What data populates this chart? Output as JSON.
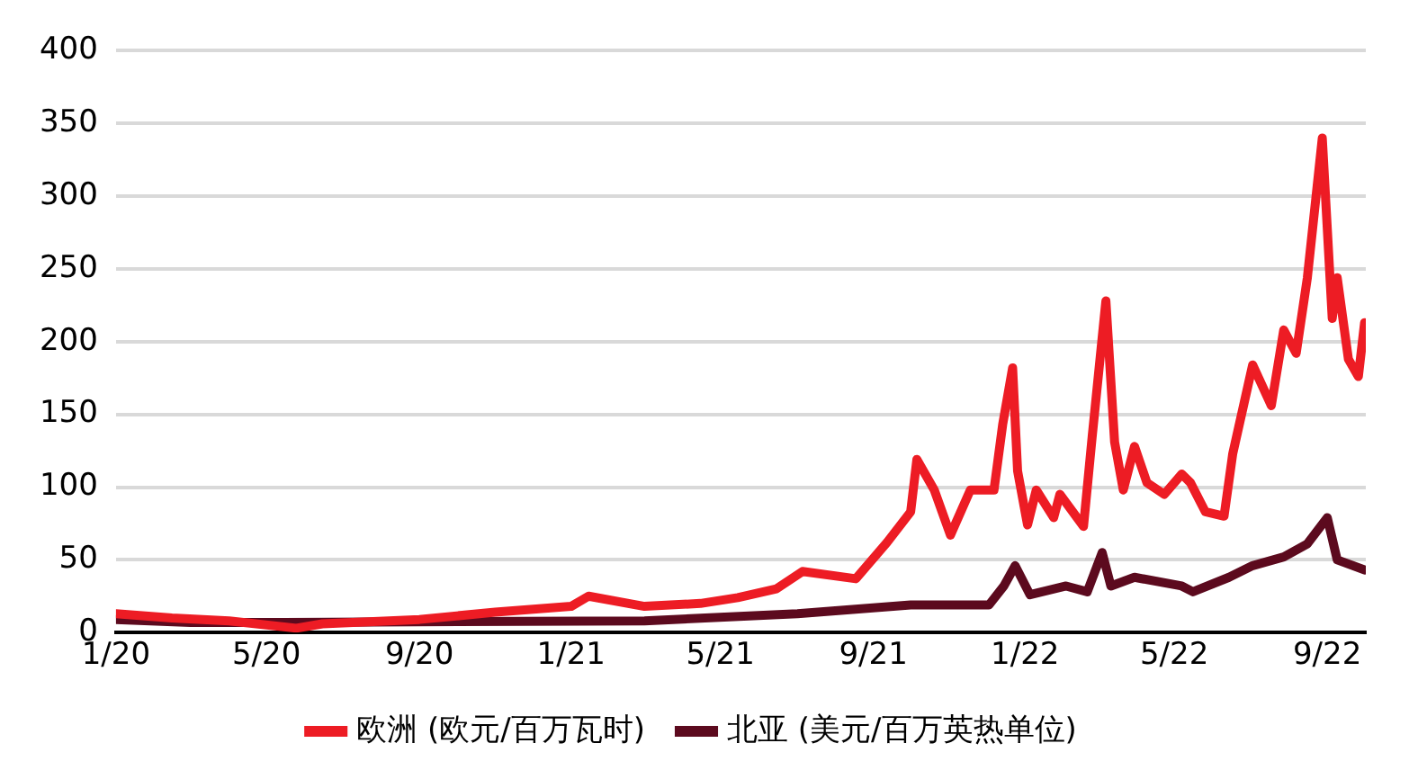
{
  "chart_data": {
    "type": "line",
    "xlim": [
      "2020-01-01",
      "2022-10-02"
    ],
    "xticks": [
      {
        "value": "2020-01-01",
        "label": "1/20"
      },
      {
        "value": "2020-05-01",
        "label": "5/20"
      },
      {
        "value": "2020-09-01",
        "label": "9/20"
      },
      {
        "value": "2021-01-01",
        "label": "1/21"
      },
      {
        "value": "2021-05-01",
        "label": "5/21"
      },
      {
        "value": "2021-09-01",
        "label": "9/21"
      },
      {
        "value": "2022-01-01",
        "label": "1/22"
      },
      {
        "value": "2022-05-01",
        "label": "5/22"
      },
      {
        "value": "2022-09-01",
        "label": "9/22"
      }
    ],
    "ylim": [
      0,
      400
    ],
    "yticks": [
      0,
      50,
      100,
      150,
      200,
      250,
      300,
      350,
      400
    ],
    "grid": "y",
    "legend": "bottom",
    "marker": "none",
    "line_style": "solid",
    "series": [
      {
        "name": "欧洲 (欧元/百万瓦时)",
        "color": "#ed1c24",
        "x": [
          "2020-01-01",
          "2020-02-15",
          "2020-04-01",
          "2020-05-25",
          "2020-06-15",
          "2020-09-01",
          "2020-11-01",
          "2021-01-01",
          "2021-01-15",
          "2021-03-01",
          "2021-04-15",
          "2021-05-15",
          "2021-06-15",
          "2021-07-06",
          "2021-08-18",
          "2021-09-12",
          "2021-10-01",
          "2021-10-06",
          "2021-10-20",
          "2021-11-02",
          "2021-11-18",
          "2021-12-07",
          "2021-12-14",
          "2021-12-22",
          "2021-12-26",
          "2022-01-03",
          "2022-01-10",
          "2022-01-24",
          "2022-01-29",
          "2022-02-17",
          "2022-02-24",
          "2022-03-07",
          "2022-03-14",
          "2022-03-21",
          "2022-03-30",
          "2022-04-09",
          "2022-04-23",
          "2022-05-07",
          "2022-05-14",
          "2022-05-26",
          "2022-06-10",
          "2022-06-17",
          "2022-07-03",
          "2022-07-18",
          "2022-07-28",
          "2022-08-07",
          "2022-08-16",
          "2022-08-28",
          "2022-09-05",
          "2022-09-09",
          "2022-09-18",
          "2022-09-26",
          "2022-10-01"
        ],
        "values": [
          13,
          10,
          8,
          3,
          6,
          9,
          14,
          18,
          25,
          18,
          20,
          24,
          30,
          42,
          37,
          62,
          83,
          119,
          98,
          67,
          98,
          98,
          143,
          182,
          111,
          74,
          98,
          79,
          95,
          73,
          135,
          228,
          131,
          98,
          128,
          103,
          95,
          109,
          103,
          83,
          80,
          123,
          184,
          156,
          208,
          192,
          244,
          340,
          216,
          244,
          188,
          176,
          213
        ]
      },
      {
        "name": "北亚 (美元/百万英热单位)",
        "color": "#5c0a1e",
        "x": [
          "2020-01-01",
          "2020-03-01",
          "2020-05-15",
          "2021-03-01",
          "2021-07-02",
          "2021-10-01",
          "2021-12-03",
          "2021-12-15",
          "2021-12-24",
          "2022-01-05",
          "2022-02-03",
          "2022-02-20",
          "2022-03-04",
          "2022-03-11",
          "2022-03-30",
          "2022-05-07",
          "2022-05-16",
          "2022-06-14",
          "2022-07-03",
          "2022-07-28",
          "2022-08-16",
          "2022-09-01",
          "2022-09-09",
          "2022-10-01"
        ],
        "values": [
          9,
          7,
          7,
          8,
          13,
          19,
          19,
          32,
          46,
          26,
          32,
          28,
          55,
          32,
          38,
          32,
          28,
          38,
          46,
          52,
          61,
          79,
          50,
          43
        ]
      }
    ]
  }
}
